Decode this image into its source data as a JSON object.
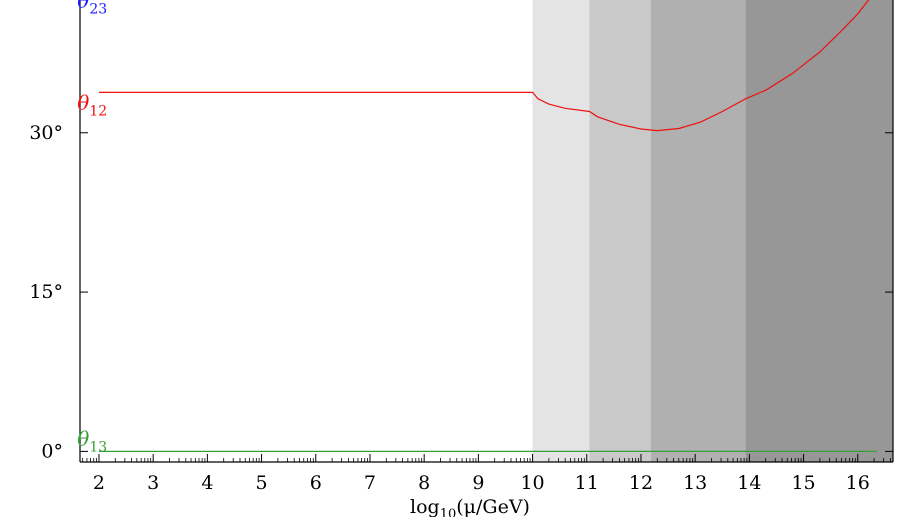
{
  "chart_data": {
    "type": "line",
    "title": "",
    "xlabel": "log10(μ/GeV)",
    "xlabel_parts": {
      "prefix": "log",
      "sub": "10",
      "rest": "(μ/GeV)"
    },
    "ylabel": "",
    "xlim": [
      1.65,
      16.65
    ],
    "ylim": [
      -1,
      42.5
    ],
    "x_ticks": [
      "2",
      "3",
      "4",
      "5",
      "6",
      "7",
      "8",
      "9",
      "10",
      "11",
      "12",
      "13",
      "14",
      "15",
      "16"
    ],
    "x_tick_values": [
      2,
      3,
      4,
      5,
      6,
      7,
      8,
      9,
      10,
      11,
      12,
      13,
      14,
      15,
      16
    ],
    "y_ticks": [
      "0°",
      "15°",
      "30°"
    ],
    "y_tick_values": [
      0,
      15,
      30
    ],
    "grid": false,
    "shaded_regions": [
      {
        "x": [
          10.0,
          11.05
        ],
        "color": "#e4e4e4"
      },
      {
        "x": [
          11.05,
          12.18
        ],
        "color": "#c9c9c9"
      },
      {
        "x": [
          12.18,
          13.93
        ],
        "color": "#b0b0b0"
      },
      {
        "x": [
          13.93,
          16.65
        ],
        "color": "#979797"
      }
    ],
    "series": [
      {
        "name": "θ23",
        "label_sym": "θ",
        "label_sub": "23",
        "color": "#1a1aff",
        "label_pos": [
          1.6,
          41.8
        ],
        "points": []
      },
      {
        "name": "θ12",
        "label_sym": "θ",
        "label_sub": "12",
        "color": "#ee1111",
        "label_pos": [
          1.6,
          32.2
        ],
        "points": [
          [
            2,
            33.8
          ],
          [
            10,
            33.8
          ],
          [
            10.1,
            33.2
          ],
          [
            10.3,
            32.7
          ],
          [
            10.6,
            32.3
          ],
          [
            11.05,
            32.0
          ],
          [
            11.2,
            31.5
          ],
          [
            11.6,
            30.8
          ],
          [
            12.0,
            30.35
          ],
          [
            12.3,
            30.2
          ],
          [
            12.7,
            30.4
          ],
          [
            13.1,
            31.0
          ],
          [
            13.5,
            32.0
          ],
          [
            13.93,
            33.2
          ],
          [
            14.3,
            34.0
          ],
          [
            14.8,
            35.6
          ],
          [
            15.3,
            37.6
          ],
          [
            15.7,
            39.6
          ],
          [
            16.0,
            41.2
          ],
          [
            16.2,
            42.5
          ]
        ]
      },
      {
        "name": "θ13",
        "label_sym": "θ",
        "label_sub": "13",
        "color": "#33a033",
        "label_pos": [
          1.6,
          0.55
        ],
        "points": [
          [
            2,
            0.0
          ],
          [
            16.35,
            0.0
          ]
        ]
      }
    ]
  }
}
